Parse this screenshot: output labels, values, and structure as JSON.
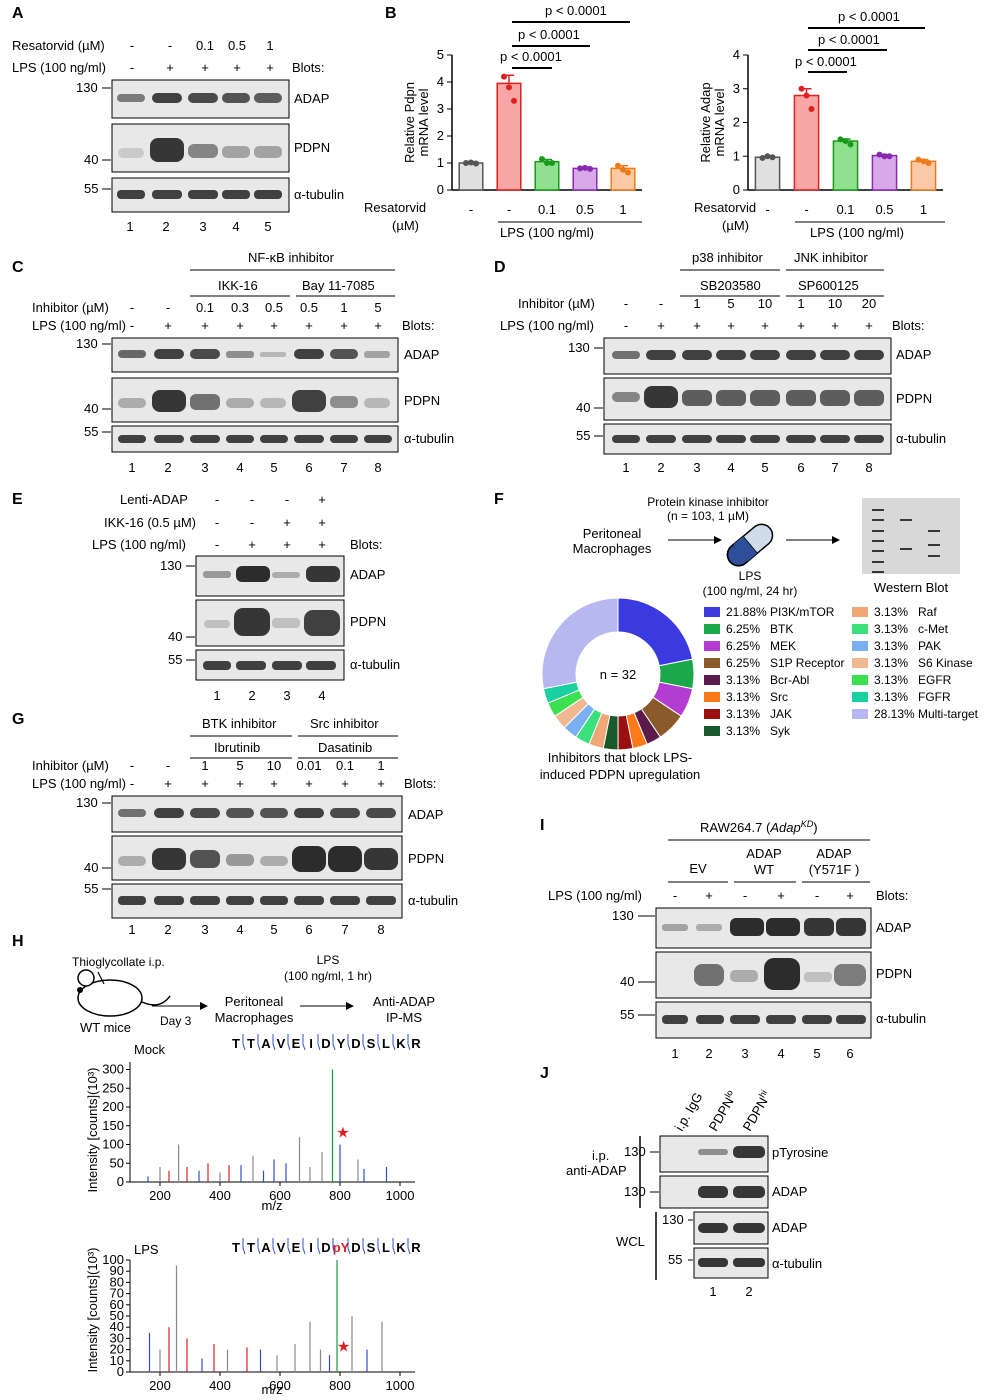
{
  "panels": {
    "A": {
      "letter": "A",
      "row1_label": "Resatorvid (µM)",
      "row1_values": [
        "-",
        "-",
        "0.1",
        "0.5",
        "1"
      ],
      "row2_label": "LPS (100 ng/ml)",
      "row2_values": [
        "-",
        "+",
        "+",
        "+",
        "+"
      ],
      "blots_label": "Blots:",
      "blots": [
        "ADAP",
        "PDPN",
        "α-tubulin"
      ],
      "markers": [
        "130",
        "40",
        "55"
      ],
      "lanes": [
        "1",
        "2",
        "3",
        "4",
        "5"
      ]
    },
    "B": {
      "letter": "B",
      "p_values": [
        "p < 0.0001",
        "p < 0.0001",
        "p < 0.0001"
      ],
      "xrow1_label": "Resatorvid",
      "xrow1_unit": "(µM)",
      "xvalues": [
        "-",
        "-",
        "0.1",
        "0.5",
        "1"
      ],
      "lps_label": "LPS (100 ng/ml)",
      "left_ylabel_line1": "Relative Pdpn",
      "left_ylabel_line2": "mRNA level",
      "right_ylabel_line1": "Relative Adap",
      "right_ylabel_line2": "mRNA level",
      "left_yticks": [
        "0",
        "1",
        "2",
        "3",
        "4",
        "5"
      ],
      "right_yticks": [
        "0",
        "1",
        "2",
        "3",
        "4"
      ]
    },
    "C": {
      "letter": "C",
      "group_title": "NF-κB inhibitor",
      "subgroups": [
        "IKK-16",
        "Bay 11-7085"
      ],
      "row1_label": "Inhibitor (µM)",
      "row1_values": [
        "-",
        "-",
        "0.1",
        "0.3",
        "0.5",
        "0.5",
        "1",
        "5"
      ],
      "row2_label": "LPS (100 ng/ml)",
      "row2_values": [
        "-",
        "+",
        "+",
        "+",
        "+",
        "+",
        "+",
        "+"
      ],
      "blots_label": "Blots:",
      "blots": [
        "ADAP",
        "PDPN",
        "α-tubulin"
      ],
      "markers": [
        "130",
        "40",
        "55"
      ],
      "lanes": [
        "1",
        "2",
        "3",
        "4",
        "5",
        "6",
        "7",
        "8"
      ]
    },
    "D": {
      "letter": "D",
      "group_titles": [
        "p38 inhibitor",
        "JNK inhibitor"
      ],
      "subgroups": [
        "SB203580",
        "SP600125"
      ],
      "row1_label": "Inhibitor (µM)",
      "row1_values": [
        "-",
        "-",
        "1",
        "5",
        "10",
        "1",
        "10",
        "20"
      ],
      "row2_label": "LPS (100 ng/ml)",
      "row2_values": [
        "-",
        "+",
        "+",
        "+",
        "+",
        "+",
        "+",
        "+"
      ],
      "blots_label": "Blots:",
      "blots": [
        "ADAP",
        "PDPN",
        "α-tubulin"
      ],
      "markers": [
        "130",
        "40",
        "55"
      ],
      "lanes": [
        "1",
        "2",
        "3",
        "4",
        "5",
        "6",
        "7",
        "8"
      ]
    },
    "E": {
      "letter": "E",
      "row1_label": "Lenti-ADAP",
      "row1_values": [
        "-",
        "-",
        "-",
        "+"
      ],
      "row2_label": "IKK-16 (0.5 µM)",
      "row2_values": [
        "-",
        "-",
        "+",
        "+"
      ],
      "row3_label": "LPS (100 ng/ml)",
      "row3_values": [
        "-",
        "+",
        "+",
        "+"
      ],
      "blots_label": "Blots:",
      "blots": [
        "ADAP",
        "PDPN",
        "α-tubulin"
      ],
      "markers": [
        "130",
        "40",
        "55"
      ],
      "lanes": [
        "1",
        "2",
        "3",
        "4"
      ]
    },
    "F": {
      "letter": "F",
      "source": "Peritoneal",
      "source2": "Macrophages",
      "inhibitor_title": "Protein kinase inhibitor",
      "inhibitor_n": "(n = 103, 1 µM)",
      "treat1": "LPS",
      "treat2": "(100 ng/ml, 24 hr)",
      "readout": "Western Blot",
      "donut_center": "n = 32",
      "caption1": "Inhibitors that block LPS-",
      "caption2": "induced PDPN upregulation"
    },
    "G": {
      "letter": "G",
      "group_titles": [
        "BTK inhibitor",
        "Src inhibitor"
      ],
      "subgroups": [
        "Ibrutinib",
        "Dasatinib"
      ],
      "row1_label": "Inhibitor (µM)",
      "row1_values": [
        "-",
        "-",
        "1",
        "5",
        "10",
        "0.01",
        "0.1",
        "1"
      ],
      "row2_label": "LPS (100 ng/ml)",
      "row2_values": [
        "-",
        "+",
        "+",
        "+",
        "+",
        "+",
        "+",
        "+"
      ],
      "blots_label": "Blots:",
      "blots": [
        "ADAP",
        "PDPN",
        "α-tubulin"
      ],
      "markers": [
        "130",
        "40",
        "55"
      ],
      "lanes": [
        "1",
        "2",
        "3",
        "4",
        "5",
        "6",
        "7",
        "8"
      ]
    },
    "H": {
      "letter": "H",
      "step1": "Thioglycollate i.p.",
      "mouse": "WT mice",
      "day": "Day 3",
      "mid1": "Peritoneal",
      "mid2": "Macrophages",
      "lps1": "LPS",
      "lps2": "(100 ng/ml, 1 hr)",
      "end1": "Anti-ADAP",
      "end2": "IP-MS",
      "mock_label": "Mock",
      "lps_label": "LPS",
      "peptide_mock": [
        "T",
        "T",
        "A",
        "V",
        "E",
        "I",
        "D",
        "Y",
        "D",
        "S",
        "L",
        "K",
        "R"
      ],
      "peptide_lps": [
        "T",
        "T",
        "A",
        "V",
        "E",
        "I",
        "D",
        "pY",
        "D",
        "S",
        "L",
        "K",
        "R"
      ],
      "xlabel": "m/z",
      "ylabel": "Intensity [counts](10³)",
      "mock_yticks": [
        "0",
        "50",
        "100",
        "150",
        "200",
        "250",
        "300"
      ],
      "lps_yticks": [
        "0",
        "10",
        "20",
        "30",
        "40",
        "50",
        "60",
        "70",
        "80",
        "90",
        "100"
      ],
      "xticks": [
        "200",
        "400",
        "600",
        "800",
        "1000"
      ]
    },
    "I": {
      "letter": "I",
      "cell_line": "RAW264.7 (AdapKD)",
      "groups": [
        "EV",
        "ADAP WT",
        "ADAP (Y571F )"
      ],
      "row_label": "LPS (100 ng/ml)",
      "row_values": [
        "-",
        "+",
        "-",
        "+",
        "-",
        "+"
      ],
      "blots_label": "Blots:",
      "blots": [
        "ADAP",
        "PDPN",
        "α-tubulin"
      ],
      "markers": [
        "130",
        "40",
        "55"
      ],
      "lanes": [
        "1",
        "2",
        "3",
        "4",
        "5",
        "6"
      ]
    },
    "J": {
      "letter": "J",
      "columns": [
        "i.p. IgG",
        "PDPNlo",
        "PDPNhi"
      ],
      "ip_label1": "i.p.",
      "ip_label2": "anti-ADAP",
      "wcl_label": "WCL",
      "blots": [
        "pTyrosine",
        "ADAP",
        "ADAP",
        "α-tubulin"
      ],
      "markers": [
        "130",
        "130",
        "130",
        "55"
      ],
      "lanes": [
        "1",
        "2"
      ]
    }
  },
  "chart_data": [
    {
      "type": "bar",
      "title": "",
      "ylabel": "Relative Pdpn mRNA level",
      "xlabel": "",
      "categories": [
        "-/-",
        "-/+",
        "0.1/+",
        "0.5/+",
        "1/+"
      ],
      "values": [
        1.0,
        3.95,
        1.05,
        0.8,
        0.8
      ],
      "errors": [
        0.05,
        0.3,
        0.08,
        0.05,
        0.1
      ],
      "points": [
        [
          1.0,
          1.02,
          0.98
        ],
        [
          4.2,
          3.8,
          3.3
        ],
        [
          1.15,
          1.0,
          1.0
        ],
        [
          0.8,
          0.82,
          0.78
        ],
        [
          0.9,
          0.75,
          0.65
        ]
      ],
      "colors": [
        "#e0e0e0",
        "#f8a5a5",
        "#8fe08f",
        "#d8a8e8",
        "#fbc9a5"
      ],
      "ylim": [
        0,
        5
      ]
    },
    {
      "type": "bar",
      "title": "",
      "ylabel": "Relative Adap mRNA level",
      "xlabel": "",
      "categories": [
        "-/-",
        "-/+",
        "0.1/+",
        "0.5/+",
        "1/+"
      ],
      "values": [
        0.97,
        2.8,
        1.45,
        1.02,
        0.85
      ],
      "errors": [
        0.03,
        0.2,
        0.06,
        0.03,
        0.05
      ],
      "points": [
        [
          0.95,
          1.0,
          0.97
        ],
        [
          3.0,
          2.8,
          2.4
        ],
        [
          1.5,
          1.45,
          1.35
        ],
        [
          1.05,
          1.0,
          1.0
        ],
        [
          0.9,
          0.85,
          0.8
        ]
      ],
      "colors": [
        "#e0e0e0",
        "#f8a5a5",
        "#8fe08f",
        "#d8a8e8",
        "#fbc9a5"
      ],
      "ylim": [
        0,
        4
      ]
    },
    {
      "type": "pie",
      "title": "",
      "categories": [
        "PI3K/mTOR",
        "BTK",
        "MEK",
        "S1P Receptor",
        "Bcr-Abl",
        "Src",
        "JAK",
        "Syk",
        "Raf",
        "c-Met",
        "PAK",
        "S6 Kinase",
        "EGFR",
        "FGFR",
        "Multi-target"
      ],
      "percent_labels": [
        "21.88%",
        "6.25%",
        "6.25%",
        "6.25%",
        "3.13%",
        "3.13%",
        "3.13%",
        "3.13%",
        "3.13%",
        "3.13%",
        "3.13%",
        "3.13%",
        "3.13%",
        "3.13%",
        "28.13%"
      ],
      "values": [
        21.88,
        6.25,
        6.25,
        6.25,
        3.13,
        3.13,
        3.13,
        3.13,
        3.13,
        3.13,
        3.13,
        3.13,
        3.13,
        3.13,
        28.13
      ],
      "colors": [
        "#3a3ae0",
        "#1aa84a",
        "#b43cd0",
        "#8a5a2a",
        "#5a1a4a",
        "#ff7a1a",
        "#9a1010",
        "#1a5a2a",
        "#f0a878",
        "#3ae07a",
        "#7ab0f0",
        "#f0b890",
        "#3ae050",
        "#1ad0a0",
        "#b8b8f0"
      ],
      "center_label": "n = 32"
    }
  ]
}
